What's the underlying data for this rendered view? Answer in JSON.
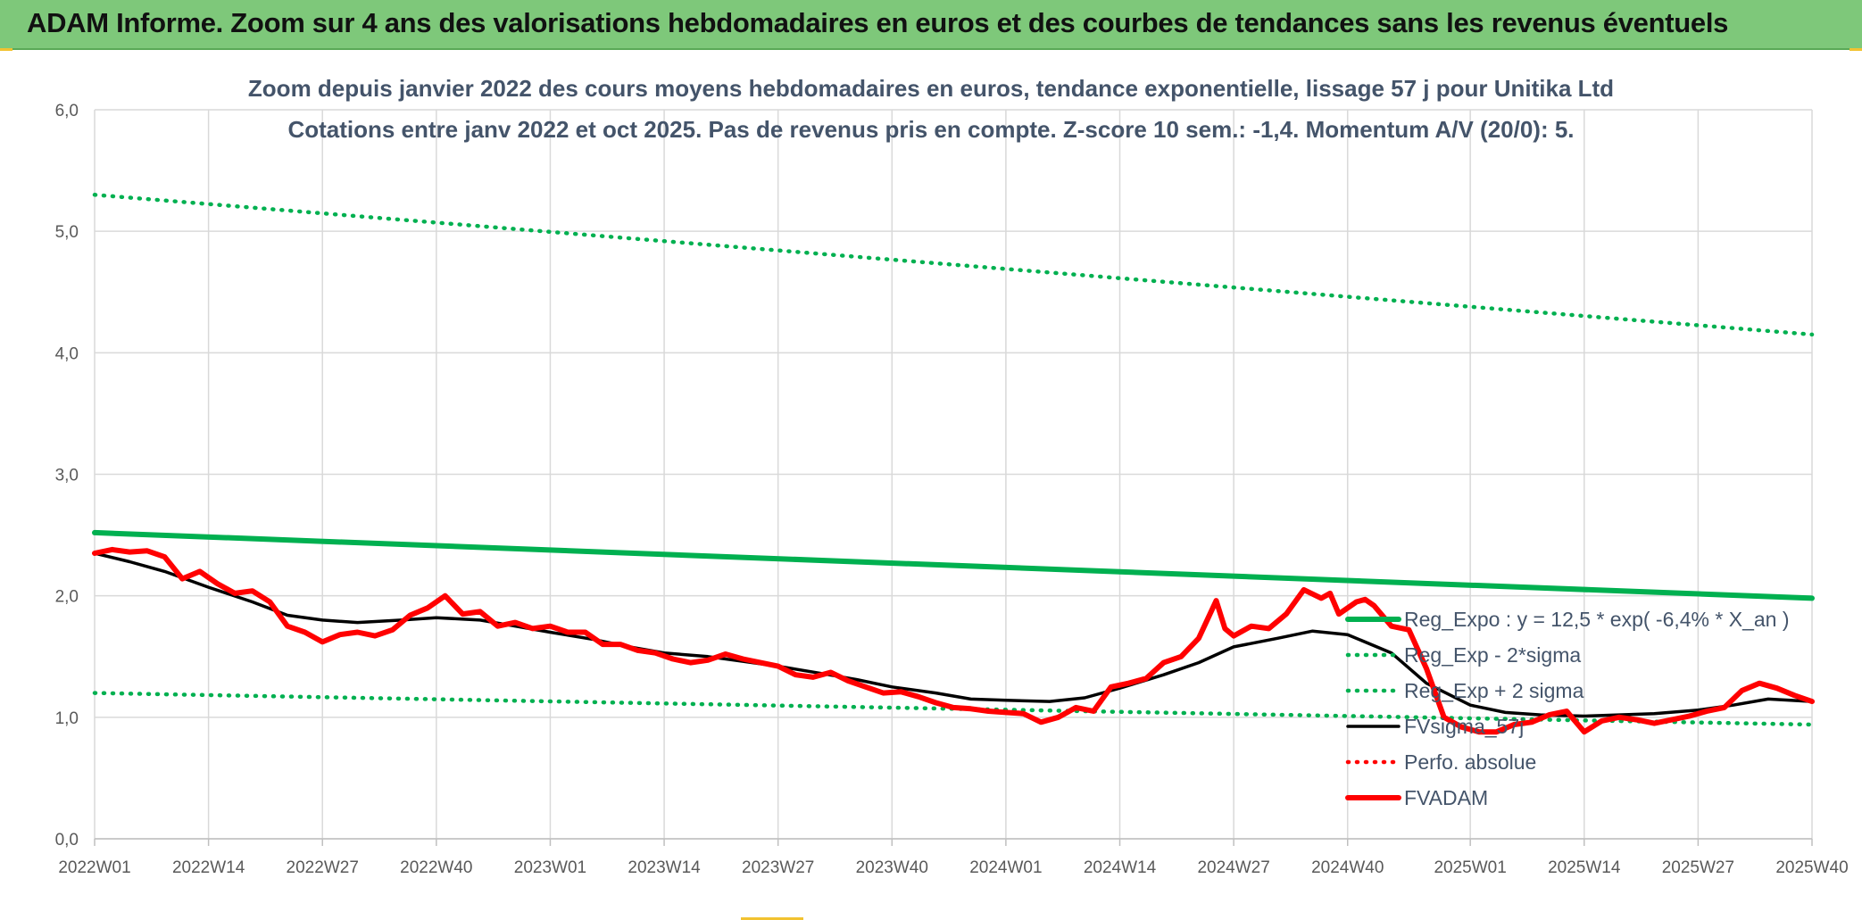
{
  "header": {
    "title": "ADAM Informe. Zoom sur 4 ans des valorisations hebdomadaires en euros et des courbes de tendances sans les revenus éventuels"
  },
  "colors": {
    "header_bg": "#7ec87a",
    "trend_green": "#00b050",
    "price_red": "#ff0000",
    "fv_black": "#000000",
    "grid": "#d9d9d9",
    "title_text": "#44546a"
  },
  "chart_data": {
    "type": "line",
    "title_line1": "Zoom depuis janvier 2022 des cours moyens hebdomadaires en euros, tendance exponentielle, lissage 57 j pour Unitika Ltd",
    "title_line2": "Cotations entre janv 2022 et oct 2025. Pas de revenus pris en compte. Z-score 10 sem.: -1,4. Momentum A/V (20/0): 5.",
    "xlabel": "",
    "ylabel": "",
    "ylim": [
      0,
      6
    ],
    "y_ticks": [
      "0,0",
      "1,0",
      "2,0",
      "3,0",
      "4,0",
      "5,0",
      "6,0"
    ],
    "x_range": [
      0,
      196
    ],
    "x_ticks": [
      {
        "label": "2022W01",
        "week": 0
      },
      {
        "label": "2022W14",
        "week": 13
      },
      {
        "label": "2022W27",
        "week": 26
      },
      {
        "label": "2022W40",
        "week": 39
      },
      {
        "label": "2023W01",
        "week": 52
      },
      {
        "label": "2023W14",
        "week": 65
      },
      {
        "label": "2023W27",
        "week": 78
      },
      {
        "label": "2023W40",
        "week": 91
      },
      {
        "label": "2024W01",
        "week": 104
      },
      {
        "label": "2024W14",
        "week": 117
      },
      {
        "label": "2024W27",
        "week": 130
      },
      {
        "label": "2024W40",
        "week": 143
      },
      {
        "label": "2025W01",
        "week": 157
      },
      {
        "label": "2025W14",
        "week": 170
      },
      {
        "label": "2025W27",
        "week": 183
      },
      {
        "label": "2025W40",
        "week": 196
      }
    ],
    "grid": true,
    "legend_position": "right-inside",
    "series": [
      {
        "name": "Reg_Expo : y = 12,5 * exp( -6,4% *  X_an )",
        "style": "solid-thick",
        "color": "#00b050",
        "x": [
          0,
          196
        ],
        "y": [
          2.52,
          1.98
        ]
      },
      {
        "name": "Reg_Exp - 2*sigma",
        "style": "dotted",
        "color": "#00b050",
        "x": [
          0,
          196
        ],
        "y": [
          1.2,
          0.94
        ]
      },
      {
        "name": "Reg_Exp + 2 sigma",
        "style": "dotted",
        "color": "#00b050",
        "x": [
          0,
          196
        ],
        "y": [
          5.3,
          4.15
        ]
      },
      {
        "name": "FVsigma_57j",
        "style": "solid",
        "color": "#000000",
        "x": [
          0,
          4,
          8,
          13,
          18,
          22,
          26,
          30,
          35,
          39,
          44,
          48,
          52,
          57,
          61,
          65,
          70,
          74,
          78,
          83,
          87,
          91,
          96,
          100,
          104,
          109,
          113,
          117,
          122,
          126,
          130,
          135,
          139,
          143,
          148,
          152,
          157,
          161,
          165,
          170,
          174,
          178,
          183,
          187,
          191,
          196
        ],
        "y": [
          2.35,
          2.28,
          2.2,
          2.07,
          1.95,
          1.84,
          1.8,
          1.78,
          1.8,
          1.82,
          1.8,
          1.75,
          1.7,
          1.64,
          1.58,
          1.53,
          1.5,
          1.46,
          1.42,
          1.36,
          1.31,
          1.25,
          1.2,
          1.15,
          1.14,
          1.13,
          1.16,
          1.24,
          1.35,
          1.45,
          1.58,
          1.65,
          1.71,
          1.68,
          1.53,
          1.28,
          1.1,
          1.04,
          1.02,
          1.01,
          1.02,
          1.03,
          1.06,
          1.1,
          1.15,
          1.13
        ]
      },
      {
        "name": "Perfo. absolue",
        "style": "dotted",
        "color": "#ff0000",
        "x": [],
        "y": []
      },
      {
        "name": "FVADAM",
        "style": "solid-thick",
        "color": "#ff0000",
        "x": [
          0,
          2,
          4,
          6,
          8,
          10,
          12,
          14,
          16,
          18,
          20,
          22,
          24,
          26,
          28,
          30,
          32,
          34,
          36,
          38,
          40,
          42,
          44,
          46,
          48,
          50,
          52,
          54,
          56,
          58,
          60,
          62,
          64,
          66,
          68,
          70,
          72,
          74,
          76,
          78,
          80,
          82,
          84,
          86,
          88,
          90,
          92,
          94,
          96,
          98,
          100,
          102,
          104,
          106,
          108,
          110,
          112,
          114,
          116,
          118,
          120,
          122,
          124,
          126,
          128,
          129,
          130,
          132,
          134,
          136,
          138,
          140,
          141,
          142,
          144,
          145,
          146,
          148,
          150,
          152,
          154,
          156,
          158,
          160,
          162,
          164,
          166,
          168,
          170,
          172,
          174,
          176,
          178,
          180,
          182,
          184,
          186,
          188,
          190,
          192,
          194,
          196
        ],
        "y": [
          2.35,
          2.38,
          2.36,
          2.37,
          2.32,
          2.14,
          2.2,
          2.1,
          2.02,
          2.04,
          1.95,
          1.75,
          1.7,
          1.62,
          1.68,
          1.7,
          1.67,
          1.72,
          1.84,
          1.9,
          2.0,
          1.85,
          1.87,
          1.75,
          1.78,
          1.73,
          1.75,
          1.7,
          1.7,
          1.6,
          1.6,
          1.55,
          1.53,
          1.48,
          1.45,
          1.47,
          1.52,
          1.48,
          1.45,
          1.42,
          1.35,
          1.33,
          1.37,
          1.3,
          1.25,
          1.2,
          1.21,
          1.17,
          1.12,
          1.08,
          1.07,
          1.05,
          1.04,
          1.03,
          0.96,
          1.0,
          1.08,
          1.05,
          1.25,
          1.28,
          1.32,
          1.45,
          1.5,
          1.65,
          1.96,
          1.73,
          1.67,
          1.75,
          1.73,
          1.85,
          2.05,
          1.98,
          2.02,
          1.85,
          1.95,
          1.97,
          1.92,
          1.75,
          1.72,
          1.4,
          1.0,
          0.92,
          0.88,
          0.88,
          0.94,
          0.96,
          1.02,
          1.05,
          0.88,
          0.97,
          1.0,
          0.98,
          0.95,
          0.98,
          1.01,
          1.05,
          1.08,
          1.22,
          1.28,
          1.24,
          1.18,
          1.13
        ]
      }
    ]
  }
}
